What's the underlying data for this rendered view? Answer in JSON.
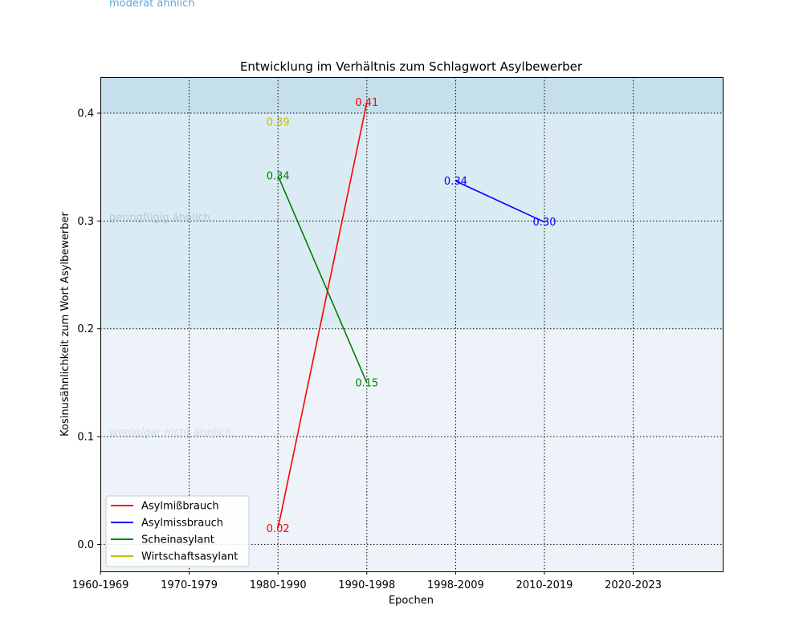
{
  "chart_data": {
    "type": "line",
    "title": "Entwicklung im Verhältnis zum Schlagwort Asylbewerber",
    "xlabel": "Epochen",
    "ylabel": "Kosinusähnlichkeit zum Wort Asylbewerber",
    "categories": [
      "1960-1969",
      "1970-1979",
      "1980-1990",
      "1990-1998",
      "1998-2009",
      "2010-2019",
      "2020-2023"
    ],
    "ylim": [
      -0.025,
      0.4335
    ],
    "yticks": [
      0.0,
      0.1,
      0.2,
      0.3,
      0.4
    ],
    "ytick_labels": [
      "0.0",
      "0.1",
      "0.2",
      "0.3",
      "0.4"
    ],
    "grid": true,
    "legend_position": "lower-left",
    "bands": [
      {
        "label": "wenig/gar nicht ähnlich",
        "from": -0.025,
        "to": 0.2,
        "color": "#eef3f9"
      },
      {
        "label": "geringfügig ähnlich",
        "from": 0.2,
        "to": 0.4,
        "color": "#dbebf3"
      },
      {
        "label": "moderat ähnlich",
        "from": 0.4,
        "to": 0.4335,
        "color": "#c5dfed"
      }
    ],
    "series": [
      {
        "name": "Asylmißbrauch",
        "color": "#ff0000",
        "points": [
          {
            "x": "1980-1990",
            "y": 0.015,
            "label": "0.02"
          },
          {
            "x": "1990-1998",
            "y": 0.41,
            "label": "0.41"
          }
        ]
      },
      {
        "name": "Asylmissbrauch",
        "color": "#0000ff",
        "points": [
          {
            "x": "1998-2009",
            "y": 0.337,
            "label": "0.34"
          },
          {
            "x": "2010-2019",
            "y": 0.299,
            "label": "0.30"
          }
        ]
      },
      {
        "name": "Scheinasylant",
        "color": "#008000",
        "points": [
          {
            "x": "1980-1990",
            "y": 0.342,
            "label": "0.34"
          },
          {
            "x": "1990-1998",
            "y": 0.15,
            "label": "0.15"
          }
        ]
      },
      {
        "name": "Wirtschaftsasylant",
        "color": "#bfbf00",
        "points": [
          {
            "x": "1980-1990",
            "y": 0.392,
            "label": "0.39"
          }
        ]
      }
    ]
  }
}
